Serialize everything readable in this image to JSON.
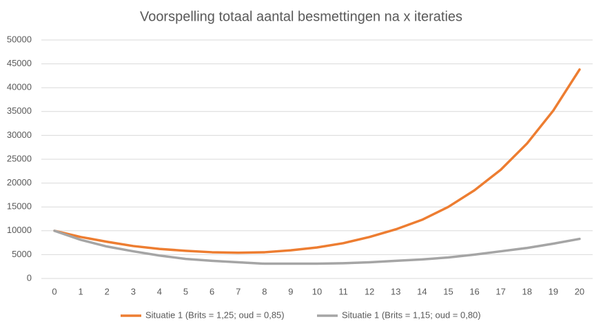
{
  "chart_data": {
    "type": "line",
    "title": "Voorspelling totaal aantal besmettingen na x iteraties",
    "categories": [
      "0",
      "1",
      "2",
      "3",
      "4",
      "5",
      "6",
      "7",
      "8",
      "9",
      "10",
      "11",
      "12",
      "13",
      "14",
      "15",
      "16",
      "17",
      "18",
      "19",
      "20"
    ],
    "series": [
      {
        "name": "Situatie 1 (Brits = 1,25; oud = 0,85)",
        "color": "#ed7d31",
        "values": [
          10000,
          8700,
          7700,
          6800,
          6200,
          5800,
          5500,
          5400,
          5500,
          5900,
          6500,
          7400,
          8700,
          10300,
          12300,
          15000,
          18500,
          22800,
          28300,
          35200,
          43800
        ]
      },
      {
        "name": "Situatie 1 (Brits = 1,15; oud = 0,80)",
        "color": "#a5a5a5",
        "values": [
          10000,
          8100,
          6700,
          5700,
          4800,
          4100,
          3700,
          3400,
          3100,
          3100,
          3100,
          3200,
          3400,
          3700,
          4000,
          4400,
          5000,
          5700,
          6400,
          7300,
          8300
        ]
      }
    ],
    "ylim": [
      0,
      50000
    ],
    "yticks": [
      0,
      5000,
      10000,
      15000,
      20000,
      25000,
      30000,
      35000,
      40000,
      45000,
      50000
    ],
    "grid": true,
    "legend": "bottom"
  }
}
